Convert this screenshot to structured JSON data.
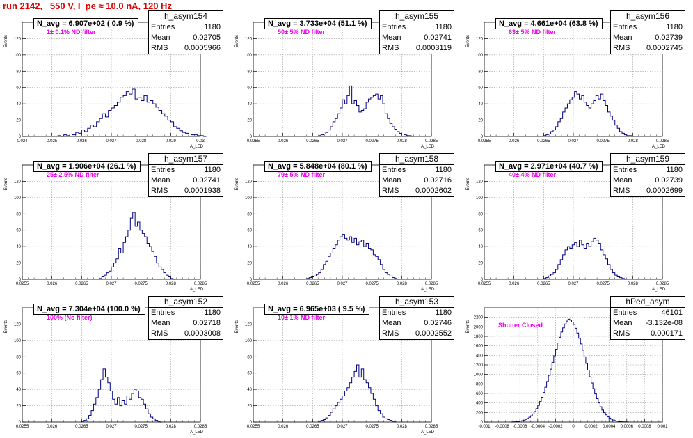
{
  "run_title": "run 2142,   550 V, I_pe ≈ 10.0 nA, 120 Hz",
  "chart_data": [
    {
      "type": "bar",
      "name": "h_asym154",
      "stats_title": "h_asym154",
      "entries": "1180",
      "mean": "0.02705",
      "rms": "0.0005966",
      "navg_label": "N_avg = 6.907e+02 ( 0.9 %)",
      "filter_label": "1± 0.1% ND filter",
      "xlim": [
        0.024,
        0.03
      ],
      "ylim": [
        0,
        140
      ],
      "xlabel": "A_LED",
      "ylabel": "Events",
      "xticks": [
        "0.024",
        "0.025",
        "0.026",
        "0.027",
        "0.028",
        "0.029",
        "0.03"
      ],
      "xtick_vals": [
        0.024,
        0.025,
        0.026,
        0.027,
        0.028,
        0.029,
        0.03
      ],
      "yticks": [
        "0",
        "20",
        "40",
        "60",
        "80",
        "100",
        "120"
      ],
      "ytick_vals": [
        0,
        20,
        40,
        60,
        80,
        100,
        120
      ],
      "bins_x0": 0.0252,
      "bin_width": 0.0001,
      "values": [
        1,
        0,
        2,
        1,
        3,
        2,
        5,
        4,
        8,
        6,
        10,
        14,
        12,
        18,
        22,
        28,
        24,
        32,
        35,
        38,
        42,
        48,
        50,
        55,
        52,
        58,
        46,
        48,
        44,
        50,
        42,
        44,
        40,
        36,
        32,
        28,
        25,
        20,
        18,
        12,
        10,
        7,
        5,
        4,
        3,
        2,
        2,
        1,
        1,
        0
      ]
    },
    {
      "type": "bar",
      "name": "h_asym155",
      "stats_title": "h_asym155",
      "entries": "1180",
      "mean": "0.02741",
      "rms": "0.0003119",
      "navg_label": "N_avg = 3.733e+04 (51.1 %)",
      "filter_label": "50± 5% ND filter",
      "xlim": [
        0.0255,
        0.0285
      ],
      "ylim": [
        0,
        140
      ],
      "xlabel": "A_LED",
      "ylabel": "Events",
      "xticks": [
        "0.0255",
        "0.026",
        "0.0265",
        "0.027",
        "0.0275",
        "0.028",
        "0.0285"
      ],
      "xtick_vals": [
        0.0255,
        0.026,
        0.0265,
        0.027,
        0.0275,
        0.028,
        0.0285
      ],
      "yticks": [
        "0",
        "20",
        "40",
        "60",
        "80",
        "100",
        "120"
      ],
      "ytick_vals": [
        0,
        20,
        40,
        60,
        80,
        100,
        120
      ],
      "bins_x0": 0.0266,
      "bin_width": 4e-05,
      "values": [
        1,
        2,
        3,
        5,
        8,
        12,
        18,
        22,
        28,
        35,
        45,
        40,
        50,
        62,
        40,
        44,
        38,
        30,
        32,
        34,
        42,
        46,
        48,
        50,
        52,
        46,
        50,
        40,
        28,
        22,
        16,
        12,
        9,
        6,
        4,
        3,
        2,
        1,
        1,
        0
      ]
    },
    {
      "type": "bar",
      "name": "h_asym156",
      "stats_title": "h_asym156",
      "entries": "1180",
      "mean": "0.02739",
      "rms": "0.0002745",
      "navg_label": "N_avg = 4.661e+04 (63.8 %)",
      "filter_label": "63± 5% ND filter",
      "xlim": [
        0.0255,
        0.0285
      ],
      "ylim": [
        0,
        140
      ],
      "xlabel": "A_LED",
      "ylabel": "Events",
      "xticks": [
        "0.0255",
        "0.026",
        "0.0265",
        "0.027",
        "0.0275",
        "0.028",
        "0.0285"
      ],
      "xtick_vals": [
        0.0255,
        0.026,
        0.0265,
        0.027,
        0.0275,
        0.028,
        0.0285
      ],
      "yticks": [
        "0",
        "20",
        "40",
        "60",
        "80",
        "100",
        "120"
      ],
      "ytick_vals": [
        0,
        20,
        40,
        60,
        80,
        100,
        120
      ],
      "bins_x0": 0.0265,
      "bin_width": 4e-05,
      "values": [
        1,
        2,
        3,
        6,
        8,
        12,
        18,
        22,
        30,
        35,
        40,
        45,
        48,
        55,
        52,
        46,
        50,
        42,
        38,
        35,
        40,
        44,
        50,
        46,
        52,
        44,
        38,
        30,
        25,
        20,
        14,
        10,
        6,
        4,
        2,
        1,
        1,
        0
      ]
    },
    {
      "type": "bar",
      "name": "h_asym157",
      "stats_title": "h_asym157",
      "entries": "1180",
      "mean": "0.02741",
      "rms": "0.0001938",
      "navg_label": "N_avg = 1.906e+04 (26.1 %)",
      "filter_label": "25± 2.5% ND filter",
      "xlim": [
        0.0255,
        0.0285
      ],
      "ylim": [
        0,
        140
      ],
      "xlabel": "A_LED",
      "ylabel": "Events",
      "xticks": [
        "0.0255",
        "0.026",
        "0.0265",
        "0.027",
        "0.0275",
        "0.028",
        "0.0285"
      ],
      "xtick_vals": [
        0.0255,
        0.026,
        0.0265,
        0.027,
        0.0275,
        0.028,
        0.0285
      ],
      "yticks": [
        "0",
        "20",
        "40",
        "60",
        "80",
        "100",
        "120"
      ],
      "ytick_vals": [
        0,
        20,
        40,
        60,
        80,
        100,
        120
      ],
      "bins_x0": 0.0268,
      "bin_width": 4e-05,
      "values": [
        1,
        3,
        5,
        8,
        10,
        15,
        20,
        25,
        38,
        32,
        45,
        52,
        60,
        75,
        82,
        65,
        70,
        60,
        56,
        52,
        44,
        40,
        34,
        28,
        20,
        15,
        12,
        8,
        5,
        3,
        1,
        0
      ]
    },
    {
      "type": "bar",
      "name": "h_asym158",
      "stats_title": "h_asym158",
      "entries": "1180",
      "mean": "0.02716",
      "rms": "0.0002602",
      "navg_label": "N_avg = 5.848e+04 (80.1 %)",
      "filter_label": "79± 5% ND filter",
      "xlim": [
        0.0255,
        0.0285
      ],
      "ylim": [
        0,
        140
      ],
      "xlabel": "A_LED",
      "ylabel": "Events",
      "xticks": [
        "0.0255",
        "0.026",
        "0.0265",
        "0.027",
        "0.0275",
        "0.028",
        "0.0285"
      ],
      "xtick_vals": [
        0.0255,
        0.026,
        0.0265,
        0.027,
        0.0275,
        0.028,
        0.0285
      ],
      "yticks": [
        "0",
        "20",
        "40",
        "60",
        "80",
        "100",
        "120"
      ],
      "ytick_vals": [
        0,
        20,
        40,
        60,
        80,
        100,
        120
      ],
      "bins_x0": 0.0264,
      "bin_width": 4e-05,
      "values": [
        1,
        2,
        3,
        4,
        6,
        8,
        12,
        18,
        22,
        28,
        32,
        38,
        42,
        48,
        52,
        55,
        50,
        48,
        52,
        45,
        50,
        42,
        46,
        48,
        40,
        44,
        38,
        36,
        30,
        28,
        24,
        18,
        12,
        8,
        6,
        4,
        2,
        1,
        0
      ]
    },
    {
      "type": "bar",
      "name": "h_asym159",
      "stats_title": "h_asym159",
      "entries": "1180",
      "mean": "0.02739",
      "rms": "0.0002699",
      "navg_label": "N_avg = 2.971e+04 (40.7 %)",
      "filter_label": "40± 4% ND filter",
      "xlim": [
        0.0255,
        0.0285
      ],
      "ylim": [
        0,
        140
      ],
      "xlabel": "A_LED",
      "ylabel": "Events",
      "xticks": [
        "0.0255",
        "0.026",
        "0.0265",
        "0.027",
        "0.0275",
        "0.028",
        "0.0285"
      ],
      "xtick_vals": [
        0.0255,
        0.026,
        0.0265,
        0.027,
        0.0275,
        0.028,
        0.0285
      ],
      "yticks": [
        "0",
        "20",
        "40",
        "60",
        "80",
        "100",
        "120"
      ],
      "ytick_vals": [
        0,
        20,
        40,
        60,
        80,
        100,
        120
      ],
      "bins_x0": 0.0265,
      "bin_width": 4e-05,
      "values": [
        1,
        2,
        4,
        6,
        8,
        12,
        18,
        24,
        30,
        36,
        40,
        38,
        42,
        45,
        40,
        48,
        42,
        38,
        44,
        40,
        46,
        50,
        48,
        44,
        36,
        30,
        25,
        18,
        12,
        8,
        5,
        3,
        2,
        1,
        0
      ]
    },
    {
      "type": "bar",
      "name": "h_asym152",
      "stats_title": "h_asym152",
      "entries": "1180",
      "mean": "0.02718",
      "rms": "0.0003008",
      "navg_label": "N_avg = 7.304e+04 (100.0 %)",
      "filter_label": "100% (No filter)",
      "xlim": [
        0.0255,
        0.0285
      ],
      "ylim": [
        0,
        140
      ],
      "xlabel": "A_LED",
      "ylabel": "Events",
      "xticks": [
        "0.0255",
        "0.026",
        "0.0265",
        "0.027",
        "0.0275",
        "0.028",
        "0.0285"
      ],
      "xtick_vals": [
        0.0255,
        0.026,
        0.0265,
        0.027,
        0.0275,
        0.028,
        0.0285
      ],
      "yticks": [
        "0",
        "20",
        "40",
        "60",
        "80",
        "100",
        "120"
      ],
      "ytick_vals": [
        0,
        20,
        40,
        60,
        80,
        100,
        120
      ],
      "bins_x0": 0.0265,
      "bin_width": 4e-05,
      "values": [
        1,
        2,
        4,
        8,
        14,
        22,
        30,
        40,
        52,
        65,
        55,
        48,
        38,
        28,
        22,
        30,
        20,
        26,
        22,
        32,
        28,
        35,
        40,
        38,
        30,
        28,
        22,
        16,
        10,
        6,
        4,
        2,
        1,
        0
      ]
    },
    {
      "type": "bar",
      "name": "h_asym153",
      "stats_title": "h_asym153",
      "entries": "1180",
      "mean": "0.02746",
      "rms": "0.0002552",
      "navg_label": "N_avg = 6.965e+03 ( 9.5 %)",
      "filter_label": "10± 1% ND filter",
      "xlim": [
        0.0255,
        0.0285
      ],
      "ylim": [
        0,
        140
      ],
      "xlabel": "A_LED",
      "ylabel": "Events",
      "xticks": [
        "0.0255",
        "0.026",
        "0.0265",
        "0.027",
        "0.0275",
        "0.028",
        "0.0285"
      ],
      "xtick_vals": [
        0.0255,
        0.026,
        0.0265,
        0.027,
        0.0275,
        0.028,
        0.0285
      ],
      "yticks": [
        "0",
        "20",
        "40",
        "60",
        "80",
        "100",
        "120"
      ],
      "ytick_vals": [
        0,
        20,
        40,
        60,
        80,
        100,
        120
      ],
      "bins_x0": 0.0266,
      "bin_width": 4e-05,
      "values": [
        1,
        2,
        3,
        5,
        8,
        12,
        16,
        20,
        24,
        28,
        32,
        38,
        42,
        48,
        55,
        62,
        70,
        55,
        65,
        52,
        48,
        42,
        35,
        28,
        20,
        14,
        10,
        6,
        4,
        3,
        2,
        1,
        0
      ]
    },
    {
      "type": "bar",
      "name": "hPed_asym",
      "stats_title": "hPed_asym",
      "entries": "46101",
      "mean": "-3.132e-08",
      "rms": "0.000171",
      "navg_label": "",
      "filter_label": "Shutter Closed",
      "xlim": [
        -0.001,
        0.001
      ],
      "ylim": [
        0,
        2400
      ],
      "xlabel": "",
      "ylabel": "Events",
      "xticks": [
        "-0.001",
        "-0.0008",
        "-0.0006",
        "-0.0004",
        "-0.0002",
        "0",
        "0.0002",
        "0.0004",
        "0.0006",
        "0.0008",
        "0.001"
      ],
      "xtick_vals": [
        -0.001,
        -0.0008,
        -0.0006,
        -0.0004,
        -0.0002,
        0,
        0.0002,
        0.0004,
        0.0006,
        0.0008,
        0.001
      ],
      "yticks": [
        "0",
        "200",
        "400",
        "600",
        "800",
        "1000",
        "1200",
        "1400",
        "1600",
        "1800",
        "2000",
        "2200"
      ],
      "ytick_vals": [
        0,
        200,
        400,
        600,
        800,
        1000,
        1200,
        1400,
        1600,
        1800,
        2000,
        2200
      ],
      "bins_x0": -0.0007,
      "bin_width": 2e-05,
      "values": [
        2,
        4,
        6,
        10,
        14,
        20,
        28,
        40,
        55,
        75,
        100,
        130,
        170,
        220,
        280,
        350,
        430,
        520,
        620,
        730,
        850,
        980,
        1110,
        1250,
        1390,
        1530,
        1660,
        1780,
        1890,
        1980,
        2060,
        2120,
        2160,
        2140,
        2100,
        2050,
        1970,
        1870,
        1760,
        1640,
        1510,
        1370,
        1230,
        1090,
        950,
        820,
        700,
        590,
        490,
        400,
        320,
        250,
        195,
        150,
        112,
        82,
        60,
        42,
        30,
        20,
        13,
        8,
        5,
        3,
        2,
        1
      ]
    }
  ]
}
